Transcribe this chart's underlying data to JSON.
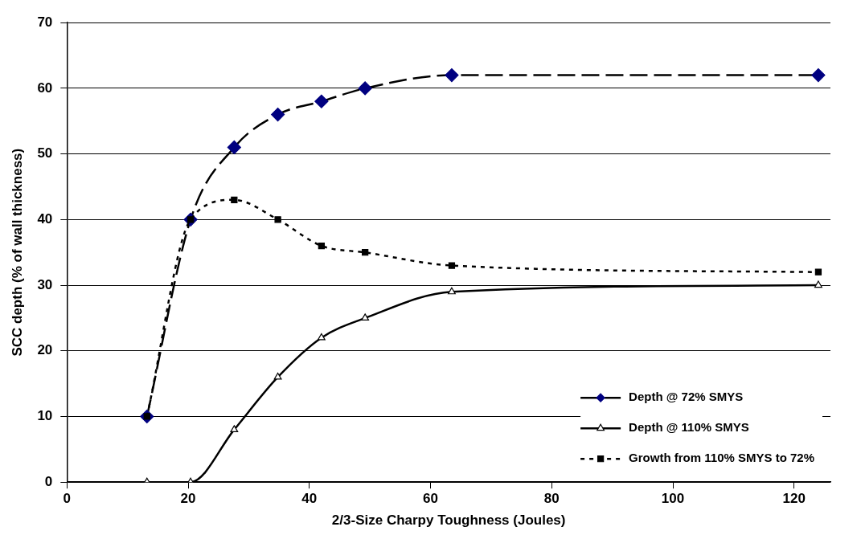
{
  "chart_data": {
    "type": "line",
    "xlabel": "2/3-Size Charpy Toughness (Joules)",
    "ylabel": "SCC depth (% of wall thickness)",
    "x": [
      13.2,
      20.4,
      27.6,
      34.8,
      42,
      49.2,
      63.5,
      124
    ],
    "xlim": [
      0,
      126
    ],
    "xticks": [
      0,
      20,
      40,
      60,
      80,
      100,
      120
    ],
    "ylim": [
      0,
      70
    ],
    "yticks": [
      0,
      10,
      20,
      30,
      40,
      50,
      60,
      70
    ],
    "grid": "y",
    "legend": "bottom right",
    "series": [
      {
        "name": "Depth @ 72% SMYS",
        "color": "#000080",
        "values": [
          10,
          40,
          51,
          56,
          58,
          60,
          62,
          62
        ],
        "marker": "diamond",
        "line_style": "dashed"
      },
      {
        "name": "Depth @ 110% SMYS",
        "color": "#000000",
        "values": [
          0,
          0,
          8,
          16,
          22,
          25,
          29,
          30
        ],
        "marker": "triangle",
        "line_style": "solid"
      },
      {
        "name": "Growth from 110% SMYS to 72%",
        "color": "#000000",
        "values": [
          10,
          40,
          43,
          40,
          36,
          35,
          33,
          32
        ],
        "marker": "square",
        "line_style": "dotted"
      }
    ]
  }
}
